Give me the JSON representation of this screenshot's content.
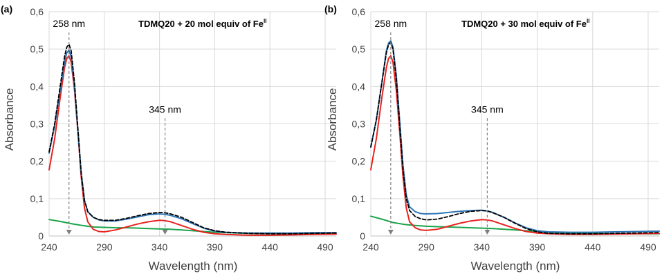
{
  "colors": {
    "red": "#e8231f",
    "blue": "#2e75b6",
    "black": "#000000",
    "green": "#1aa34a",
    "grid": "#d9d9d9",
    "text": "#404040",
    "arrow": "#808080"
  },
  "chart_data": [
    {
      "panel_label": "(a)",
      "type": "line",
      "title_main": "TDMQ20 + 20 mol equiv of Fe",
      "title_sup": "II",
      "xlabel": "Wavelength (nm)",
      "ylabel": "Absorbance",
      "xlim": [
        240,
        500
      ],
      "ylim": [
        0,
        0.6
      ],
      "xticks": [
        240,
        290,
        340,
        390,
        440,
        490
      ],
      "xtick_labels": [
        "240",
        "290",
        "340",
        "390",
        "440",
        "490"
      ],
      "yticks": [
        0,
        0.1,
        0.2,
        0.3,
        0.4,
        0.5,
        0.6
      ],
      "ytick_labels": [
        "0",
        "0,1",
        "0,2",
        "0,3",
        "0,4",
        "0,5",
        "0,6"
      ],
      "grid": true,
      "annotations": [
        {
          "text": "258 nm",
          "x": 258,
          "y": 0.5
        },
        {
          "text": "345 nm",
          "x": 345,
          "y": 0.05
        }
      ],
      "series": [
        {
          "color": "red",
          "dash": false,
          "points": [
            [
              240,
              0.177
            ],
            [
              245,
              0.26
            ],
            [
              250,
              0.37
            ],
            [
              254,
              0.45
            ],
            [
              256,
              0.475
            ],
            [
              258,
              0.482
            ],
            [
              260,
              0.465
            ],
            [
              263,
              0.39
            ],
            [
              266,
              0.28
            ],
            [
              269,
              0.16
            ],
            [
              272,
              0.075
            ],
            [
              275,
              0.038
            ],
            [
              280,
              0.018
            ],
            [
              285,
              0.012
            ],
            [
              290,
              0.011
            ],
            [
              300,
              0.016
            ],
            [
              310,
              0.024
            ],
            [
              320,
              0.032
            ],
            [
              330,
              0.038
            ],
            [
              340,
              0.042
            ],
            [
              345,
              0.041
            ],
            [
              350,
              0.038
            ],
            [
              360,
              0.028
            ],
            [
              370,
              0.018
            ],
            [
              380,
              0.01
            ],
            [
              390,
              0.006
            ],
            [
              400,
              0.004
            ],
            [
              420,
              0.002
            ],
            [
              440,
              0.002
            ],
            [
              460,
              0.003
            ],
            [
              480,
              0.004
            ],
            [
              500,
              0.005
            ]
          ]
        },
        {
          "color": "black",
          "dash": true,
          "points": [
            [
              240,
              0.225
            ],
            [
              245,
              0.3
            ],
            [
              250,
              0.4
            ],
            [
              254,
              0.48
            ],
            [
              256,
              0.505
            ],
            [
              258,
              0.513
            ],
            [
              260,
              0.495
            ],
            [
              263,
              0.41
            ],
            [
              266,
              0.29
            ],
            [
              269,
              0.17
            ],
            [
              272,
              0.095
            ],
            [
              275,
              0.065
            ],
            [
              280,
              0.05
            ],
            [
              285,
              0.044
            ],
            [
              290,
              0.042
            ],
            [
              300,
              0.042
            ],
            [
              310,
              0.047
            ],
            [
              320,
              0.054
            ],
            [
              330,
              0.06
            ],
            [
              340,
              0.063
            ],
            [
              345,
              0.062
            ],
            [
              350,
              0.059
            ],
            [
              360,
              0.05
            ],
            [
              370,
              0.036
            ],
            [
              380,
              0.022
            ],
            [
              390,
              0.014
            ],
            [
              400,
              0.01
            ],
            [
              420,
              0.007
            ],
            [
              440,
              0.006
            ],
            [
              460,
              0.006
            ],
            [
              480,
              0.007
            ],
            [
              500,
              0.008
            ]
          ]
        },
        {
          "color": "blue",
          "dash": false,
          "points": [
            [
              240,
              0.222
            ],
            [
              245,
              0.295
            ],
            [
              250,
              0.39
            ],
            [
              254,
              0.465
            ],
            [
              256,
              0.49
            ],
            [
              258,
              0.497
            ],
            [
              260,
              0.48
            ],
            [
              263,
              0.4
            ],
            [
              266,
              0.285
            ],
            [
              269,
              0.17
            ],
            [
              272,
              0.095
            ],
            [
              275,
              0.065
            ],
            [
              280,
              0.05
            ],
            [
              285,
              0.043
            ],
            [
              290,
              0.04
            ],
            [
              300,
              0.04
            ],
            [
              310,
              0.045
            ],
            [
              320,
              0.051
            ],
            [
              330,
              0.057
            ],
            [
              340,
              0.059
            ],
            [
              345,
              0.058
            ],
            [
              350,
              0.055
            ],
            [
              360,
              0.046
            ],
            [
              370,
              0.033
            ],
            [
              380,
              0.021
            ],
            [
              390,
              0.013
            ],
            [
              400,
              0.01
            ],
            [
              420,
              0.008
            ],
            [
              440,
              0.008
            ],
            [
              460,
              0.008
            ],
            [
              480,
              0.009
            ],
            [
              500,
              0.009
            ]
          ]
        },
        {
          "color": "green",
          "dash": false,
          "points": [
            [
              240,
              0.044
            ],
            [
              250,
              0.039
            ],
            [
              260,
              0.033
            ],
            [
              270,
              0.028
            ],
            [
              280,
              0.024
            ],
            [
              290,
              0.023
            ],
            [
              300,
              0.022
            ],
            [
              310,
              0.022
            ],
            [
              320,
              0.021
            ],
            [
              330,
              0.02
            ],
            [
              340,
              0.019
            ],
            [
              350,
              0.018
            ],
            [
              360,
              0.016
            ],
            [
              370,
              0.014
            ],
            [
              380,
              0.012
            ],
            [
              390,
              0.01
            ],
            [
              400,
              0.009
            ],
            [
              420,
              0.007
            ],
            [
              440,
              0.006
            ],
            [
              460,
              0.006
            ],
            [
              480,
              0.006
            ],
            [
              500,
              0.006
            ]
          ]
        }
      ]
    },
    {
      "panel_label": "(b)",
      "type": "line",
      "title_main": "TDMQ20 + 30 mol equiv of Fe",
      "title_sup": "II",
      "xlabel": "Wavelength (nm)",
      "ylabel": "Absorbance",
      "xlim": [
        240,
        500
      ],
      "ylim": [
        0,
        0.6
      ],
      "xticks": [
        240,
        290,
        340,
        390,
        440,
        490
      ],
      "xtick_labels": [
        "240",
        "290",
        "340",
        "390",
        "440",
        "490"
      ],
      "yticks": [
        0,
        0.1,
        0.2,
        0.3,
        0.4,
        0.5,
        0.6
      ],
      "ytick_labels": [
        "0",
        "0,1",
        "0,2",
        "0,3",
        "0,4",
        "0,5",
        "0,6"
      ],
      "grid": true,
      "annotations": [
        {
          "text": "258 nm",
          "x": 258,
          "y": 0.52
        },
        {
          "text": "345 nm",
          "x": 345,
          "y": 0.068
        }
      ],
      "series": [
        {
          "color": "red",
          "dash": false,
          "points": [
            [
              240,
              0.177
            ],
            [
              245,
              0.26
            ],
            [
              250,
              0.37
            ],
            [
              254,
              0.45
            ],
            [
              256,
              0.475
            ],
            [
              258,
              0.482
            ],
            [
              260,
              0.465
            ],
            [
              263,
              0.39
            ],
            [
              266,
              0.28
            ],
            [
              269,
              0.16
            ],
            [
              272,
              0.075
            ],
            [
              275,
              0.038
            ],
            [
              280,
              0.022
            ],
            [
              285,
              0.016
            ],
            [
              290,
              0.015
            ],
            [
              300,
              0.018
            ],
            [
              310,
              0.026
            ],
            [
              320,
              0.034
            ],
            [
              330,
              0.04
            ],
            [
              340,
              0.044
            ],
            [
              345,
              0.043
            ],
            [
              350,
              0.04
            ],
            [
              360,
              0.03
            ],
            [
              370,
              0.02
            ],
            [
              380,
              0.012
            ],
            [
              390,
              0.008
            ],
            [
              400,
              0.006
            ],
            [
              420,
              0.004
            ],
            [
              440,
              0.004
            ],
            [
              460,
              0.005
            ],
            [
              480,
              0.006
            ],
            [
              500,
              0.007
            ]
          ]
        },
        {
          "color": "black",
          "dash": true,
          "points": [
            [
              240,
              0.238
            ],
            [
              245,
              0.31
            ],
            [
              250,
              0.41
            ],
            [
              254,
              0.49
            ],
            [
              256,
              0.512
            ],
            [
              258,
              0.518
            ],
            [
              260,
              0.5
            ],
            [
              263,
              0.42
            ],
            [
              266,
              0.3
            ],
            [
              269,
              0.18
            ],
            [
              272,
              0.1
            ],
            [
              275,
              0.068
            ],
            [
              280,
              0.052
            ],
            [
              285,
              0.046
            ],
            [
              290,
              0.043
            ],
            [
              300,
              0.045
            ],
            [
              310,
              0.052
            ],
            [
              320,
              0.06
            ],
            [
              330,
              0.066
            ],
            [
              340,
              0.068
            ],
            [
              345,
              0.067
            ],
            [
              350,
              0.062
            ],
            [
              360,
              0.05
            ],
            [
              370,
              0.034
            ],
            [
              380,
              0.02
            ],
            [
              390,
              0.011
            ],
            [
              400,
              0.007
            ],
            [
              420,
              0.006
            ],
            [
              440,
              0.006
            ],
            [
              460,
              0.007
            ],
            [
              480,
              0.008
            ],
            [
              500,
              0.009
            ]
          ]
        },
        {
          "color": "blue",
          "dash": false,
          "points": [
            [
              240,
              0.238
            ],
            [
              245,
              0.31
            ],
            [
              250,
              0.41
            ],
            [
              254,
              0.495
            ],
            [
              256,
              0.516
            ],
            [
              258,
              0.522
            ],
            [
              260,
              0.505
            ],
            [
              263,
              0.43
            ],
            [
              266,
              0.31
            ],
            [
              269,
              0.19
            ],
            [
              272,
              0.11
            ],
            [
              275,
              0.078
            ],
            [
              280,
              0.065
            ],
            [
              285,
              0.06
            ],
            [
              290,
              0.059
            ],
            [
              300,
              0.06
            ],
            [
              310,
              0.063
            ],
            [
              320,
              0.066
            ],
            [
              330,
              0.068
            ],
            [
              340,
              0.069
            ],
            [
              345,
              0.067
            ],
            [
              350,
              0.063
            ],
            [
              360,
              0.05
            ],
            [
              370,
              0.035
            ],
            [
              380,
              0.022
            ],
            [
              390,
              0.014
            ],
            [
              400,
              0.011
            ],
            [
              420,
              0.01
            ],
            [
              440,
              0.01
            ],
            [
              460,
              0.011
            ],
            [
              480,
              0.012
            ],
            [
              500,
              0.013
            ]
          ]
        },
        {
          "color": "green",
          "dash": false,
          "points": [
            [
              240,
              0.053
            ],
            [
              250,
              0.045
            ],
            [
              260,
              0.036
            ],
            [
              270,
              0.031
            ],
            [
              280,
              0.028
            ],
            [
              290,
              0.026
            ],
            [
              300,
              0.025
            ],
            [
              310,
              0.024
            ],
            [
              320,
              0.023
            ],
            [
              330,
              0.022
            ],
            [
              340,
              0.021
            ],
            [
              350,
              0.02
            ],
            [
              360,
              0.018
            ],
            [
              370,
              0.016
            ],
            [
              380,
              0.014
            ],
            [
              390,
              0.012
            ],
            [
              400,
              0.01
            ],
            [
              420,
              0.008
            ],
            [
              440,
              0.007
            ],
            [
              460,
              0.006
            ],
            [
              480,
              0.006
            ],
            [
              500,
              0.006
            ]
          ]
        }
      ]
    }
  ]
}
